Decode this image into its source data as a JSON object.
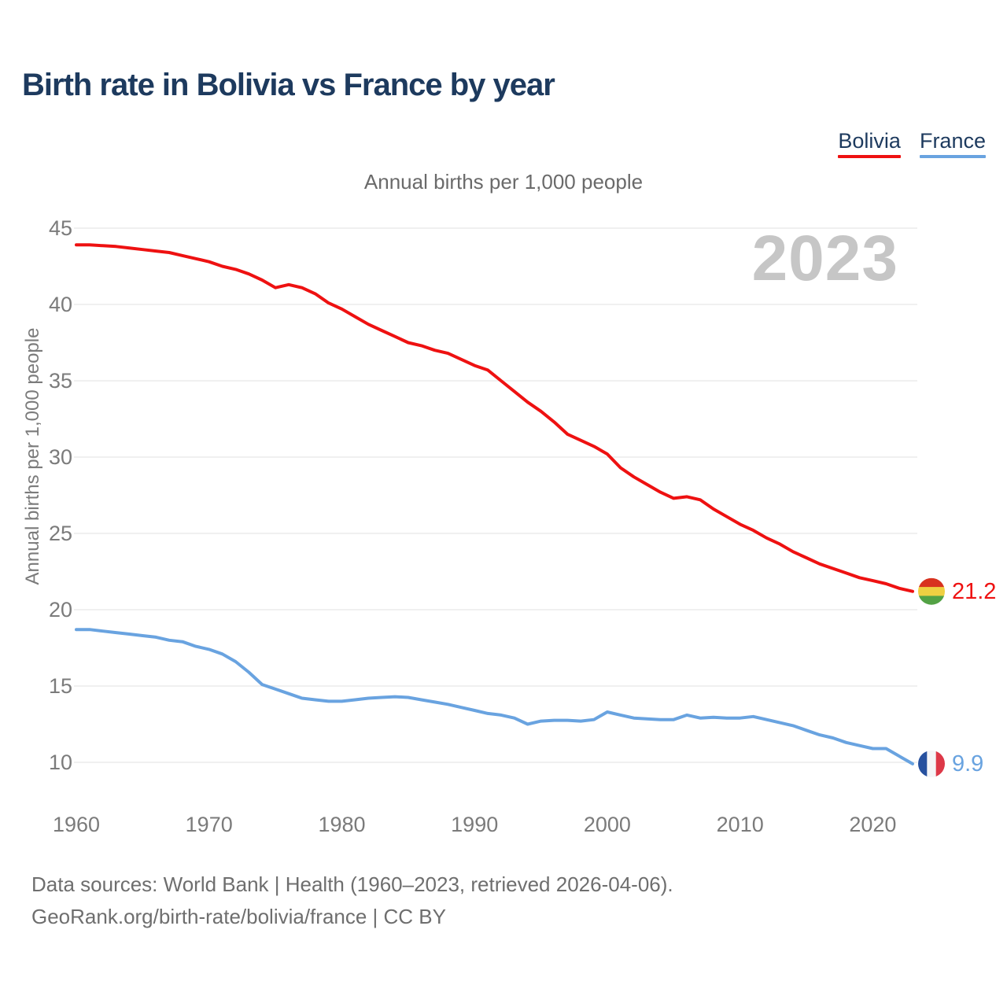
{
  "title": "Birth rate in Bolivia vs France by year",
  "subtitle": "Annual births per 1,000 people",
  "watermark": "2023",
  "legend": [
    {
      "label": "Bolivia",
      "color": "#ee1111"
    },
    {
      "label": "France",
      "color": "#69a3e0"
    }
  ],
  "y_axis": {
    "label": "Annual births per 1,000 people",
    "ticks": [
      45,
      40,
      35,
      30,
      25,
      20,
      15,
      10
    ]
  },
  "x_axis": {
    "ticks": [
      1960,
      1970,
      1980,
      1990,
      2000,
      2010,
      2020
    ]
  },
  "end_labels": [
    {
      "series": "Bolivia",
      "value": "21.2",
      "color": "#ee1111",
      "flag": "bolivia",
      "flag_colors": [
        "#d8321f",
        "#efd042",
        "#53a245"
      ],
      "flag_orientation": "horizontal"
    },
    {
      "series": "France",
      "value": "9.9",
      "color": "#69a3e0",
      "flag": "france",
      "flag_colors": [
        "#27519f",
        "#f5f5f7",
        "#dd3848"
      ],
      "flag_orientation": "vertical"
    }
  ],
  "footer": {
    "line1": "Data sources: World Bank | Health (1960–2023, retrieved 2026-04-06).",
    "line2": "GeoRank.org/birth-rate/bolivia/france | CC BY"
  },
  "colors": {
    "title": "#1d3a5e",
    "axis_text": "#7b7b7b",
    "grid": "#ebebeb",
    "subtitle": "#6a6a6a",
    "watermark": "#c6c6c6",
    "footer": "#6e6e6e"
  },
  "chart_data": {
    "type": "line",
    "title": "Birth rate in Bolivia vs France by year",
    "xlabel": "",
    "ylabel": "Annual births per 1,000 people",
    "ylim": [
      9,
      46
    ],
    "xlim": [
      1960,
      2023
    ],
    "grid": "horizontal-only",
    "legend_position": "top-right",
    "x": [
      1960,
      1961,
      1962,
      1963,
      1964,
      1965,
      1966,
      1967,
      1968,
      1969,
      1970,
      1971,
      1972,
      1973,
      1974,
      1975,
      1976,
      1977,
      1978,
      1979,
      1980,
      1981,
      1982,
      1983,
      1984,
      1985,
      1986,
      1987,
      1988,
      1989,
      1990,
      1991,
      1992,
      1993,
      1994,
      1995,
      1996,
      1997,
      1998,
      1999,
      2000,
      2001,
      2002,
      2003,
      2004,
      2005,
      2006,
      2007,
      2008,
      2009,
      2010,
      2011,
      2012,
      2013,
      2014,
      2015,
      2016,
      2017,
      2018,
      2019,
      2020,
      2021,
      2022,
      2023
    ],
    "series": [
      {
        "name": "Bolivia",
        "color": "#ee1111",
        "values": [
          43.9,
          43.9,
          43.85,
          43.8,
          43.7,
          43.6,
          43.5,
          43.4,
          43.2,
          43.0,
          42.8,
          42.5,
          42.3,
          42.0,
          41.6,
          41.1,
          41.3,
          41.1,
          40.7,
          40.1,
          39.7,
          39.2,
          38.7,
          38.3,
          37.9,
          37.5,
          37.3,
          37.0,
          36.8,
          36.4,
          36.0,
          35.7,
          35.0,
          34.3,
          33.6,
          33.0,
          32.3,
          31.5,
          31.1,
          30.7,
          30.2,
          29.3,
          28.7,
          28.2,
          27.7,
          27.3,
          27.4,
          27.2,
          26.6,
          26.1,
          25.6,
          25.2,
          24.7,
          24.3,
          23.8,
          23.4,
          23.0,
          22.7,
          22.4,
          22.1,
          21.9,
          21.7,
          21.4,
          21.2
        ]
      },
      {
        "name": "France",
        "color": "#69a3e0",
        "values": [
          18.7,
          18.7,
          18.6,
          18.5,
          18.4,
          18.3,
          18.2,
          18.0,
          17.9,
          17.6,
          17.4,
          17.1,
          16.6,
          15.9,
          15.1,
          14.8,
          14.5,
          14.2,
          14.1,
          14.0,
          14.0,
          14.1,
          14.2,
          14.25,
          14.3,
          14.25,
          14.1,
          13.95,
          13.8,
          13.6,
          13.4,
          13.2,
          13.1,
          12.9,
          12.5,
          12.7,
          12.75,
          12.75,
          12.7,
          12.8,
          13.3,
          13.1,
          12.9,
          12.85,
          12.8,
          12.8,
          13.1,
          12.9,
          12.95,
          12.9,
          12.9,
          13.0,
          12.8,
          12.6,
          12.4,
          12.1,
          11.8,
          11.6,
          11.3,
          11.1,
          10.9,
          10.9,
          10.4,
          9.9
        ]
      }
    ]
  }
}
